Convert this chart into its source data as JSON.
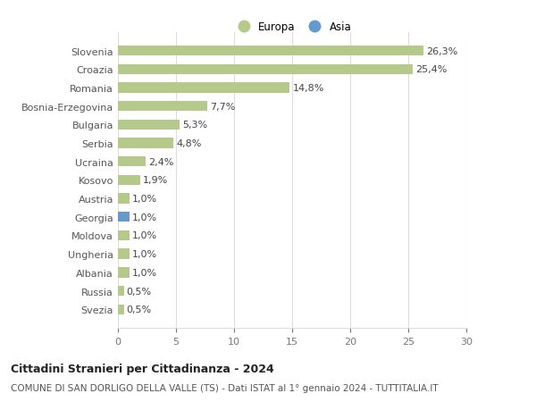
{
  "categories": [
    "Slovenia",
    "Croazia",
    "Romania",
    "Bosnia-Erzegovina",
    "Bulgaria",
    "Serbia",
    "Ucraina",
    "Kosovo",
    "Austria",
    "Georgia",
    "Moldova",
    "Ungheria",
    "Albania",
    "Russia",
    "Svezia"
  ],
  "values": [
    26.3,
    25.4,
    14.8,
    7.7,
    5.3,
    4.8,
    2.4,
    1.9,
    1.0,
    1.0,
    1.0,
    1.0,
    1.0,
    0.5,
    0.5
  ],
  "labels": [
    "26,3%",
    "25,4%",
    "14,8%",
    "7,7%",
    "5,3%",
    "4,8%",
    "2,4%",
    "1,9%",
    "1,0%",
    "1,0%",
    "1,0%",
    "1,0%",
    "1,0%",
    "0,5%",
    "0,5%"
  ],
  "colors": [
    "#b5c98a",
    "#b5c98a",
    "#b5c98a",
    "#b5c98a",
    "#b5c98a",
    "#b5c98a",
    "#b5c98a",
    "#b5c98a",
    "#b5c98a",
    "#6699cc",
    "#b5c98a",
    "#b5c98a",
    "#b5c98a",
    "#b5c98a",
    "#b5c98a"
  ],
  "europa_color": "#b5c98a",
  "asia_color": "#6699cc",
  "title": "Cittadini Stranieri per Cittadinanza - 2024",
  "subtitle": "COMUNE DI SAN DORLIGO DELLA VALLE (TS) - Dati ISTAT al 1° gennaio 2024 - TUTTITALIA.IT",
  "xlim": [
    0,
    30
  ],
  "xticks": [
    0,
    5,
    10,
    15,
    20,
    25,
    30
  ],
  "background_color": "#ffffff",
  "grid_color": "#dddddd",
  "bar_height": 0.55,
  "legend_europa": "Europa",
  "legend_asia": "Asia",
  "title_fontsize": 9,
  "subtitle_fontsize": 7.5,
  "label_fontsize": 8,
  "tick_fontsize": 8,
  "ytick_fontsize": 8
}
